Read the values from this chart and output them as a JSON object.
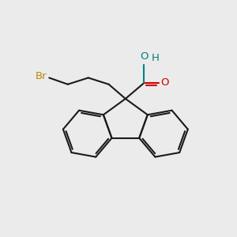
{
  "bg_color": "#ebebeb",
  "bond_color": "#1a1a1a",
  "bond_width": 1.5,
  "atom_colors": {
    "Br": "#b8860b",
    "O_carbonyl": "#cc0000",
    "O_hydroxyl": "#008080",
    "H": "#008080"
  },
  "figsize": [
    3.0,
    3.0
  ],
  "dpi": 100
}
